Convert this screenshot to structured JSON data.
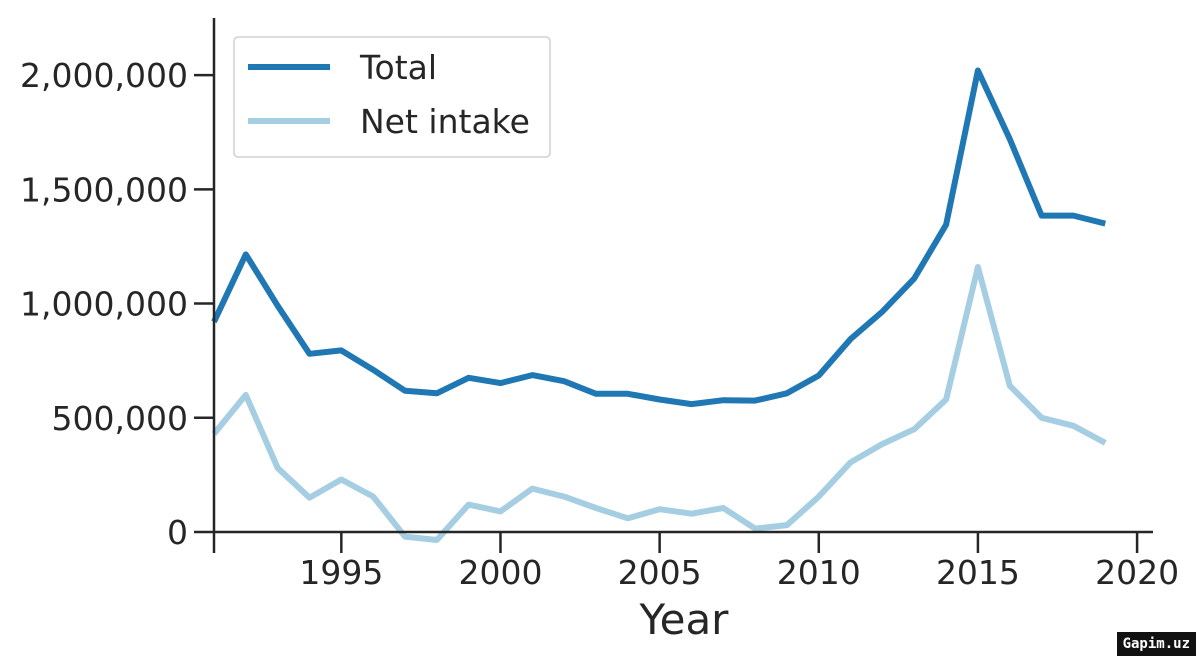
{
  "chart_data": {
    "type": "line",
    "title": "",
    "xlabel": "Year",
    "ylabel": "",
    "xlim": [
      1991,
      2020.5
    ],
    "ylim": [
      0,
      2250000
    ],
    "x_ticks": [
      1995,
      2000,
      2005,
      2010,
      2015,
      2020
    ],
    "y_ticks": [
      0,
      500000,
      1000000,
      1500000,
      2000000
    ],
    "y_tick_labels": [
      "0",
      "500,000",
      "1,000,000",
      "1,500,000",
      "2,000,000"
    ],
    "grid": false,
    "legend_position": "top-left",
    "x": [
      1991,
      1992,
      1993,
      1994,
      1995,
      1996,
      1997,
      1998,
      1999,
      2000,
      2001,
      2002,
      2003,
      2004,
      2005,
      2006,
      2007,
      2008,
      2009,
      2010,
      2011,
      2012,
      2013,
      2014,
      2015,
      2016,
      2017,
      2018,
      2019
    ],
    "series": [
      {
        "name": "Total",
        "color": "#1f77b4",
        "values": [
          920000,
          1215000,
          990000,
          780000,
          795000,
          710000,
          618000,
          607000,
          675000,
          652000,
          687000,
          660000,
          605000,
          605000,
          580000,
          560000,
          577000,
          575000,
          607000,
          685000,
          845000,
          965000,
          1110000,
          1345000,
          2020000,
          1720000,
          1385000,
          1385000,
          1350000
        ]
      },
      {
        "name": "Net intake",
        "color": "#a6cee3",
        "values": [
          430000,
          600000,
          280000,
          150000,
          230000,
          155000,
          -20000,
          -35000,
          120000,
          90000,
          190000,
          155000,
          105000,
          60000,
          100000,
          80000,
          105000,
          15000,
          30000,
          155000,
          305000,
          385000,
          450000,
          580000,
          1160000,
          640000,
          500000,
          465000,
          390000
        ]
      }
    ]
  },
  "watermark": "Gapim.uz"
}
